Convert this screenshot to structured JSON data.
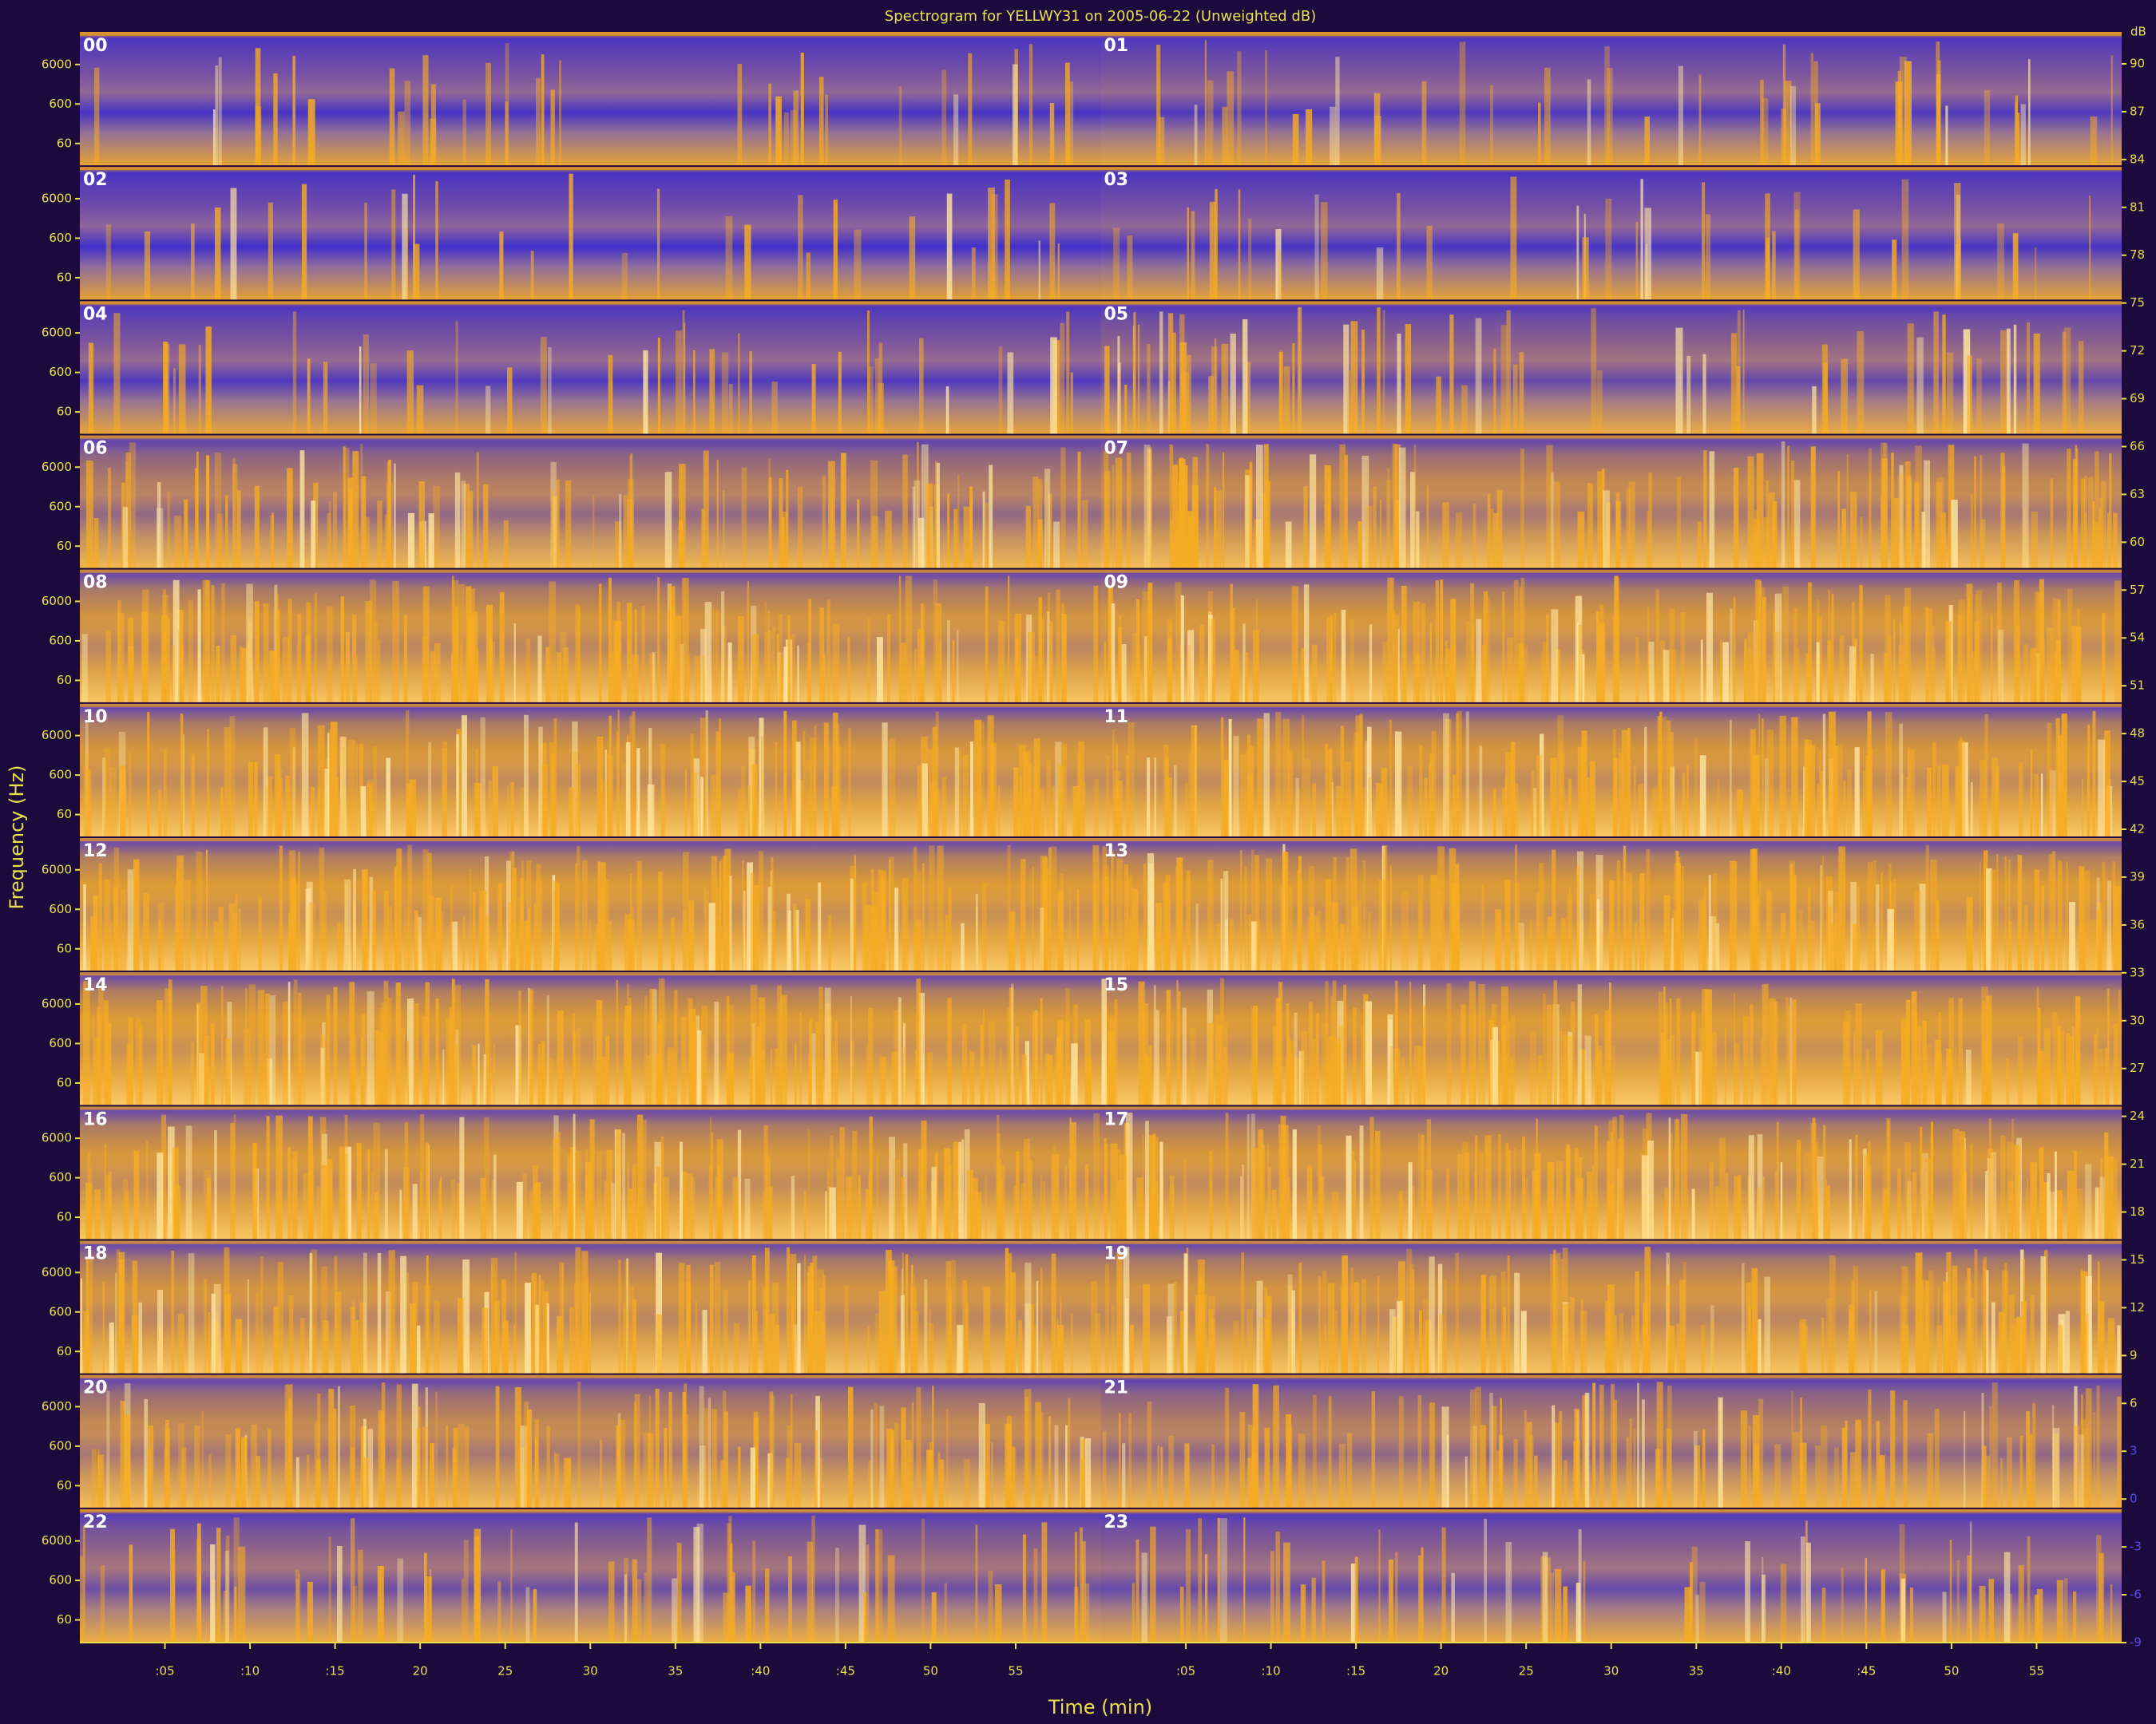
{
  "chart_data": {
    "type": "spectrogram",
    "title": "Spectrogram for YELLWY31 on 2005-06-22 (Unweighted dB)",
    "xlabel": "Time (min)",
    "ylabel": "Frequency (Hz)",
    "hours": [
      "00",
      "01",
      "02",
      "03",
      "04",
      "05",
      "06",
      "07",
      "08",
      "09",
      "10",
      "11",
      "12",
      "13",
      "14",
      "15",
      "16",
      "17",
      "18",
      "19",
      "20",
      "21",
      "22",
      "23"
    ],
    "xlim": [
      0,
      60
    ],
    "xticks": [
      {
        "value": 5,
        "label": ":05"
      },
      {
        "value": 10,
        "label": ":10"
      },
      {
        "value": 15,
        "label": ":15"
      },
      {
        "value": 20,
        "label": "20"
      },
      {
        "value": 25,
        "label": "25"
      },
      {
        "value": 30,
        "label": "30"
      },
      {
        "value": 35,
        "label": "35"
      },
      {
        "value": 40,
        "label": ":40"
      },
      {
        "value": 45,
        "label": ":45"
      },
      {
        "value": 50,
        "label": "50"
      },
      {
        "value": 55,
        "label": "55"
      }
    ],
    "log_y": true,
    "ylim": [
      16,
      40000
    ],
    "yticks": [
      60,
      600,
      6000
    ],
    "colorbar_label": "dB",
    "clim": [
      -9,
      92
    ],
    "cticks": [
      90,
      87,
      84,
      81,
      78,
      75,
      72,
      69,
      66,
      63,
      60,
      57,
      54,
      51,
      48,
      45,
      42,
      39,
      36,
      33,
      30,
      27,
      24,
      21,
      18,
      15,
      12,
      9,
      6,
      3,
      0,
      -3,
      -6,
      -9
    ]
  }
}
